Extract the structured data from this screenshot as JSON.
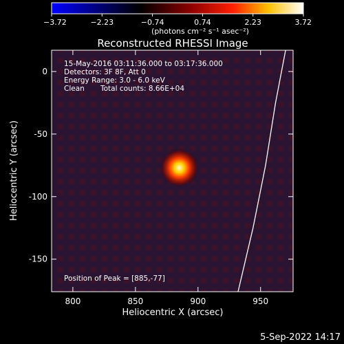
{
  "chart_data": {
    "type": "heatmap",
    "title": "Reconstructed RHESSI Image",
    "xlabel": "Heliocentric X (arcsec)",
    "ylabel": "Heliocentric Y (arcsec)",
    "xlim": [
      783,
      976
    ],
    "ylim": [
      -176,
      17
    ],
    "xticks": [
      800,
      850,
      900,
      950
    ],
    "yticks": [
      0,
      -50,
      -100,
      -150
    ],
    "colorbar": {
      "range": [
        -3.72,
        3.72
      ],
      "ticks": [
        "-3.72",
        "-2.23",
        "-0.74",
        "0.74",
        "2.23",
        "3.72"
      ],
      "units_label": "(photons cm⁻² s⁻¹ asec⁻²)",
      "colormap": "blue-black-red-yellow-white"
    },
    "annotations": {
      "time_range": "15-May-2016 03:11:36.000 to 03:17:36.000",
      "detectors": "Detectors: 3F 8F, Att 0",
      "energy": "Energy Range: 3.0 - 6.0 keV",
      "method": "Clean",
      "counts": "Total counts: 8.66E+04",
      "peak": "Position of Peak = [885,-77]"
    },
    "peak": {
      "x": 885,
      "y": -77
    },
    "limb_points": [
      [
        932,
        -176
      ],
      [
        944,
        -125
      ],
      [
        954,
        -75
      ],
      [
        962,
        -25
      ],
      [
        970,
        17
      ]
    ]
  },
  "footer": {
    "date": "5-Sep-2022 14:17"
  }
}
